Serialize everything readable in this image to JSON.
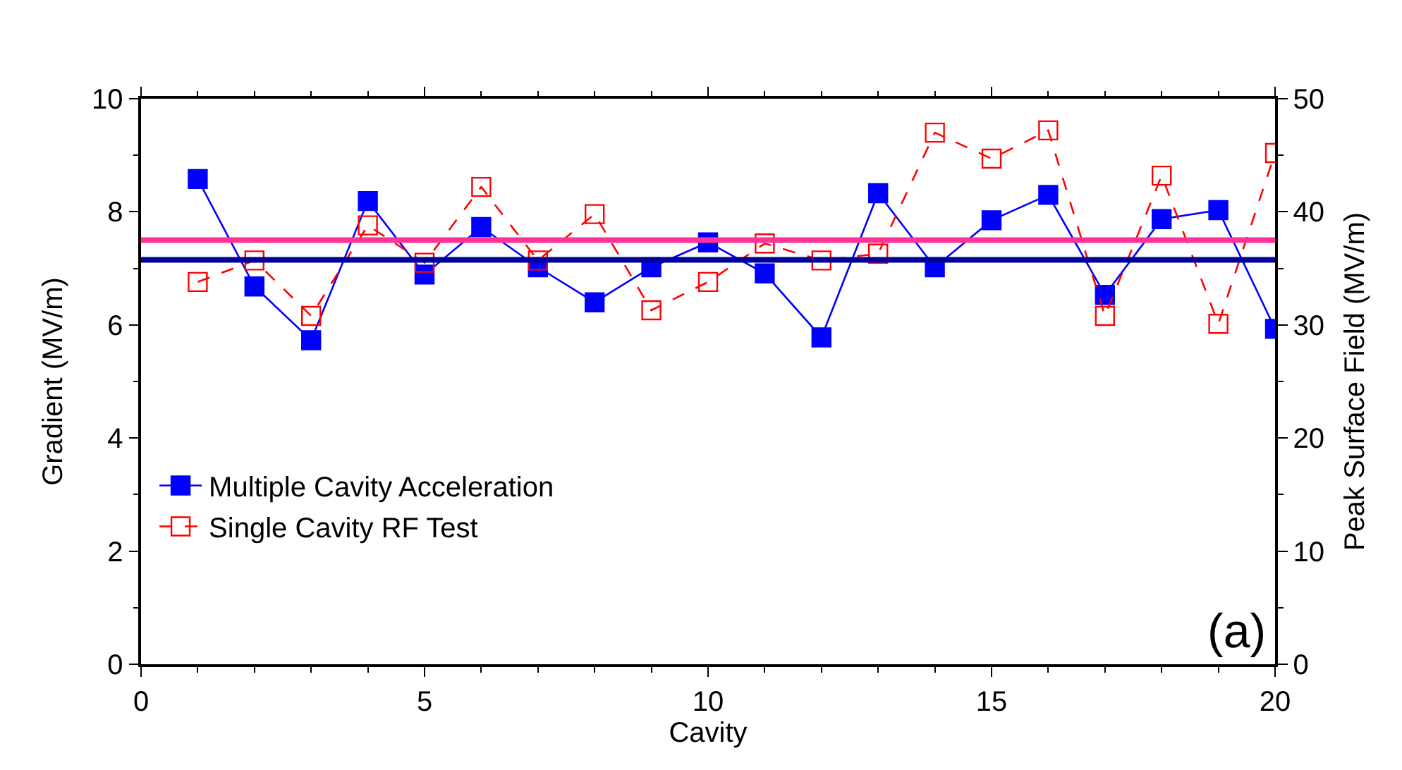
{
  "chart_data": {
    "type": "line",
    "xlabel": "Cavity",
    "ylabel": "Gradient (MV/m)",
    "y2label": "Peak Surface Field (MV/m)",
    "x": [
      1,
      2,
      3,
      4,
      5,
      6,
      7,
      8,
      9,
      10,
      11,
      12,
      13,
      14,
      15,
      16,
      17,
      18,
      19,
      20
    ],
    "series": [
      {
        "name": "Multiple Cavity Acceleration",
        "color": "#0000ff",
        "marker": "square",
        "line_style": "solid",
        "values": [
          8.58,
          6.68,
          5.73,
          8.19,
          6.89,
          7.73,
          7.02,
          6.4,
          7.02,
          7.46,
          6.91,
          5.78,
          8.33,
          7.02,
          7.85,
          8.3,
          6.53,
          7.87,
          8.03,
          5.93
        ]
      },
      {
        "name": "Single Cavity RF Test",
        "color": "#ff0000",
        "marker": "square-open",
        "line_style": "dashed",
        "axis": "y2",
        "values": [
          33.8,
          35.7,
          30.8,
          38.8,
          35.5,
          42.2,
          35.7,
          39.8,
          31.3,
          33.8,
          37.2,
          35.7,
          36.3,
          47.0,
          44.7,
          47.2,
          30.8,
          43.2,
          30.1,
          45.2
        ]
      }
    ],
    "xlim": [
      0,
      20
    ],
    "xticks": [
      0,
      5,
      10,
      15,
      20
    ],
    "ylim": [
      0,
      10
    ],
    "yticks": [
      0,
      2,
      4,
      6,
      8,
      10
    ],
    "y2lim": [
      0,
      50
    ],
    "y2ticks": [
      0,
      10,
      20,
      30,
      40,
      50
    ],
    "ref_lines": [
      {
        "axis": "y2",
        "value": 37.5,
        "color": "#ff3399"
      },
      {
        "axis": "y",
        "value": 7.15,
        "color": "#000099"
      }
    ],
    "annotations": [
      "(a)"
    ],
    "grid": false,
    "legend": "left"
  }
}
